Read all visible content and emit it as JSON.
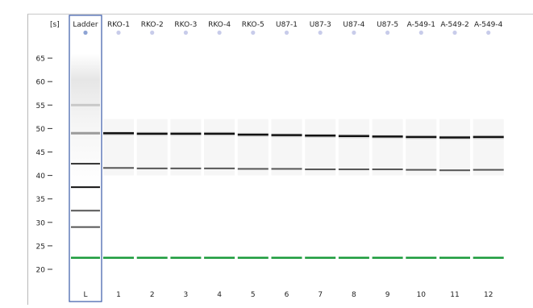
{
  "gel": {
    "unit_label": "[s]",
    "ladder": {
      "label": "Ladder",
      "lane_id": "L"
    },
    "samples": [
      {
        "label": "RKO-1",
        "lane_id": "1"
      },
      {
        "label": "RKO-2",
        "lane_id": "2"
      },
      {
        "label": "RKO-3",
        "lane_id": "3"
      },
      {
        "label": "RKO-4",
        "lane_id": "4"
      },
      {
        "label": "RKO-5",
        "lane_id": "5"
      },
      {
        "label": "U87-1",
        "lane_id": "6"
      },
      {
        "label": "U87-3",
        "lane_id": "7"
      },
      {
        "label": "U87-4",
        "lane_id": "8"
      },
      {
        "label": "U87-5",
        "lane_id": "9"
      },
      {
        "label": "A-549-1",
        "lane_id": "10"
      },
      {
        "label": "A-549-2",
        "lane_id": "11"
      },
      {
        "label": "A-549-4",
        "lane_id": "12"
      }
    ],
    "y_ticks": [
      "65",
      "60",
      "55",
      "50",
      "45",
      "40",
      "35",
      "30",
      "25",
      "20"
    ],
    "ladder_bands_s": [
      29,
      32.5,
      37.5,
      42.5,
      49,
      55
    ],
    "sample_bands_s": {
      "upper": [
        49,
        48.9,
        48.9,
        48.9,
        48.7,
        48.6,
        48.5,
        48.4,
        48.3,
        48.2,
        48.1,
        48.2
      ],
      "lower": [
        41.6,
        41.5,
        41.5,
        41.5,
        41.4,
        41.4,
        41.3,
        41.3,
        41.3,
        41.2,
        41.1,
        41.2
      ]
    },
    "marker_band_s": 22.5,
    "colors": {
      "marker": "#1a9a3a",
      "selected_border": "#3a5aa8",
      "ladder_dot": "#8ea4d4",
      "sample_dot": "#c8ccea",
      "axis_panel": "#d3d3d3"
    }
  }
}
